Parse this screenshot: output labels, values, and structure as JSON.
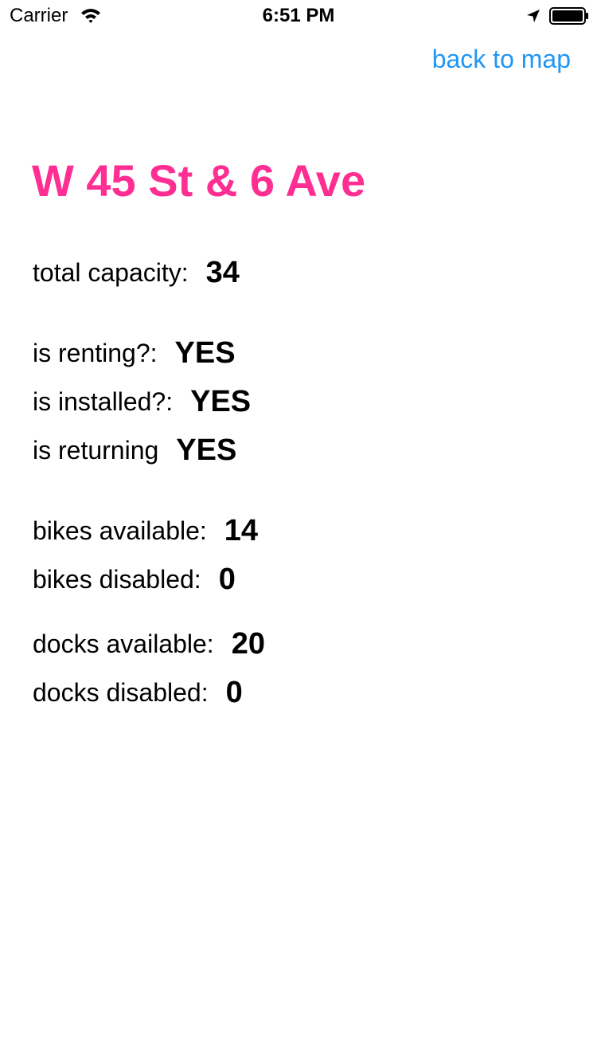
{
  "status_bar": {
    "carrier": "Carrier",
    "time": "6:51 PM",
    "icons": [
      "wifi-icon",
      "location-arrow-icon",
      "battery-icon"
    ]
  },
  "header": {
    "back_label": "back to map",
    "link_color": "#2196f3"
  },
  "station": {
    "name": "W 45 St & 6 Ave",
    "title_color": "#ff2e93",
    "total_capacity": {
      "label": "total capacity:",
      "value": "34"
    },
    "is_renting": {
      "label": "is renting?:",
      "value": "YES"
    },
    "is_installed": {
      "label": "is installed?:",
      "value": "YES"
    },
    "is_returning": {
      "label": "is returning",
      "value": "YES"
    },
    "bikes_available": {
      "label": "bikes available:",
      "value": "14"
    },
    "bikes_disabled": {
      "label": "bikes disabled:",
      "value": "0"
    },
    "docks_available": {
      "label": "docks available:",
      "value": "20"
    },
    "docks_disabled": {
      "label": "docks disabled:",
      "value": "0"
    }
  }
}
